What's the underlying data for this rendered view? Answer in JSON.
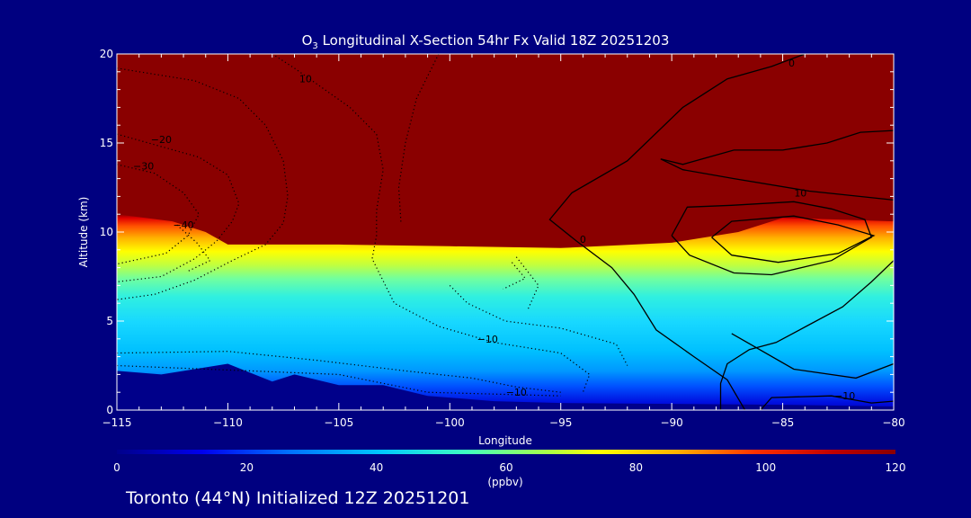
{
  "chart_data": {
    "type": "heatmap",
    "title_prefix": "O",
    "title_sub": "3",
    "title_rest": " Longitudinal X-Section 54hr  Fx Valid 18Z 20251203",
    "xlabel": "Longitude",
    "ylabel": "Altitude (km)",
    "xlim": [
      -115,
      -80
    ],
    "ylim": [
      0,
      20
    ],
    "x_ticks": [
      "−115",
      "−110",
      "−105",
      "−100",
      "−95",
      "−90",
      "−85",
      "−80"
    ],
    "x_tick_values": [
      -115,
      -110,
      -105,
      -100,
      -95,
      -90,
      -85,
      -80
    ],
    "y_ticks": [
      "0",
      "5",
      "10",
      "15",
      "20"
    ],
    "y_tick_values": [
      0,
      5,
      10,
      15,
      20
    ],
    "colorbar": {
      "min": 0,
      "max": 120,
      "ticks": [
        "0",
        "20",
        "40",
        "60",
        "80",
        "100",
        "120"
      ],
      "tick_values": [
        0,
        20,
        40,
        60,
        80,
        100,
        120
      ],
      "label": "(ppbv)"
    },
    "tropopause_km": [
      [
        -115,
        11.0
      ],
      [
        -112.5,
        10.6
      ],
      [
        -111,
        10.0
      ],
      [
        -110,
        9.3
      ],
      [
        -105,
        9.3
      ],
      [
        -100,
        9.2
      ],
      [
        -95,
        9.1
      ],
      [
        -90,
        9.4
      ],
      [
        -87,
        10.0
      ],
      [
        -85,
        10.8
      ],
      [
        -80,
        10.6
      ]
    ],
    "terrain_km": [
      [
        -115,
        2.2
      ],
      [
        -113,
        2.0
      ],
      [
        -110,
        2.6
      ],
      [
        -108,
        1.6
      ],
      [
        -107,
        2.0
      ],
      [
        -105,
        1.4
      ],
      [
        -103,
        1.4
      ],
      [
        -101,
        0.8
      ],
      [
        -98,
        0.5
      ],
      [
        -95,
        0.4
      ],
      [
        -90,
        0.35
      ],
      [
        -85,
        0.3
      ],
      [
        -80,
        0.2
      ]
    ],
    "contour_labels": [
      {
        "text": "10",
        "x": -106.5,
        "y": 18.4
      },
      {
        "text": "−20",
        "x": -113.0,
        "y": 15.0
      },
      {
        "text": "−30",
        "x": -113.8,
        "y": 13.5
      },
      {
        "text": "−40",
        "x": -112.0,
        "y": 10.2
      },
      {
        "text": "−10",
        "x": -98.3,
        "y": 3.8
      },
      {
        "text": "−10",
        "x": -97.0,
        "y": 0.8
      },
      {
        "text": "0",
        "x": -94.0,
        "y": 9.4
      },
      {
        "text": "0",
        "x": -84.6,
        "y": 19.3
      },
      {
        "text": "10",
        "x": -84.2,
        "y": 12.0
      },
      {
        "text": "−10",
        "x": -82.2,
        "y": 0.6
      }
    ],
    "contours_solid": [
      [
        [
          -84,
          20
        ],
        [
          -85.5,
          19.3
        ],
        [
          -87.5,
          18.6
        ],
        [
          -89.5,
          17.0
        ],
        [
          -92,
          14.0
        ],
        [
          -94.5,
          12.2
        ],
        [
          -95.5,
          10.7
        ],
        [
          -94.3,
          9.5
        ],
        [
          -92.7,
          8.0
        ],
        [
          -91.7,
          6.5
        ],
        [
          -90.7,
          4.5
        ],
        [
          -89.0,
          3.0
        ],
        [
          -87.5,
          1.7
        ],
        [
          -86.7,
          0
        ]
      ],
      [
        [
          -80,
          15.7
        ],
        [
          -81.5,
          15.6
        ],
        [
          -83.0,
          15.0
        ],
        [
          -85.0,
          14.6
        ],
        [
          -87.2,
          14.6
        ],
        [
          -89.5,
          13.8
        ],
        [
          -90.5,
          14.1
        ],
        [
          -89.5,
          13.5
        ],
        [
          -87.2,
          13.0
        ],
        [
          -83.8,
          12.3
        ],
        [
          -80,
          11.8
        ]
      ],
      [
        [
          -80,
          8.4
        ],
        [
          -81.0,
          7.2
        ],
        [
          -82.3,
          5.8
        ],
        [
          -83.8,
          4.8
        ],
        [
          -85.3,
          3.8
        ],
        [
          -86.5,
          3.4
        ],
        [
          -87.5,
          2.6
        ],
        [
          -87.8,
          1.5
        ],
        [
          -87.8,
          0
        ]
      ],
      [
        [
          -87.3,
          4.3
        ],
        [
          -84.5,
          2.3
        ],
        [
          -81.7,
          1.8
        ],
        [
          -80,
          2.6
        ]
      ],
      [
        [
          -86.0,
          0
        ],
        [
          -85.5,
          0.7
        ],
        [
          -82.8,
          0.8
        ],
        [
          -81.0,
          0.4
        ],
        [
          -80,
          0.5
        ]
      ],
      [
        [
          -90,
          9.8
        ],
        [
          -89.3,
          11.4
        ],
        [
          -87.3,
          11.5
        ],
        [
          -84.5,
          11.7
        ],
        [
          -82.8,
          11.3
        ],
        [
          -81.3,
          10.7
        ],
        [
          -81.0,
          9.7
        ],
        [
          -82.8,
          8.4
        ],
        [
          -85.5,
          7.6
        ],
        [
          -87.2,
          7.7
        ],
        [
          -89.2,
          8.7
        ],
        [
          -90,
          9.8
        ]
      ],
      [
        [
          -88.2,
          9.7
        ],
        [
          -87.3,
          10.6
        ],
        [
          -84.5,
          10.9
        ],
        [
          -82.5,
          10.4
        ],
        [
          -80.9,
          9.8
        ],
        [
          -82.5,
          8.8
        ],
        [
          -85.2,
          8.3
        ],
        [
          -87.3,
          8.7
        ],
        [
          -88.2,
          9.7
        ]
      ]
    ],
    "contours_dotted": [
      [
        [
          -108,
          20
        ],
        [
          -107,
          19.2
        ],
        [
          -104.5,
          17.0
        ],
        [
          -103.3,
          15.5
        ],
        [
          -103,
          13.5
        ],
        [
          -103.3,
          11.2
        ],
        [
          -103.3,
          9.8
        ],
        [
          -103.5,
          8.5
        ],
        [
          -102.5,
          6.0
        ],
        [
          -100.5,
          4.7
        ],
        [
          -98,
          3.8
        ],
        [
          -95,
          3.2
        ],
        [
          -93.7,
          2.0
        ],
        [
          -94,
          1.0
        ]
      ],
      [
        [
          -100.5,
          20
        ],
        [
          -101.5,
          17.5
        ],
        [
          -102.0,
          15.0
        ],
        [
          -102.3,
          12.5
        ],
        [
          -102.2,
          10.5
        ]
      ],
      [
        [
          -115,
          19.2
        ],
        [
          -111.5,
          18.5
        ],
        [
          -109.5,
          17.5
        ],
        [
          -108.3,
          16.0
        ],
        [
          -107.5,
          14.0
        ],
        [
          -107.3,
          12.0
        ],
        [
          -107.5,
          10.5
        ],
        [
          -108.3,
          9.3
        ],
        [
          -109.8,
          8.4
        ],
        [
          -111.5,
          7.3
        ],
        [
          -113.3,
          6.5
        ],
        [
          -115,
          6.2
        ]
      ],
      [
        [
          -115,
          15.5
        ],
        [
          -113.0,
          14.8
        ],
        [
          -111.3,
          14.2
        ],
        [
          -110.0,
          13.2
        ],
        [
          -109.5,
          11.6
        ],
        [
          -109.8,
          10.6
        ],
        [
          -110.5,
          9.5
        ],
        [
          -111.5,
          8.5
        ],
        [
          -113.0,
          7.5
        ],
        [
          -115,
          7.2
        ]
      ],
      [
        [
          -115,
          13.8
        ],
        [
          -113.3,
          13.3
        ],
        [
          -112.0,
          12.2
        ],
        [
          -111.3,
          11.0
        ],
        [
          -111.8,
          9.8
        ],
        [
          -112.8,
          8.8
        ],
        [
          -115,
          8.2
        ]
      ],
      [
        [
          -112.3,
          10.4
        ],
        [
          -111.4,
          9.4
        ],
        [
          -110.8,
          8.4
        ],
        [
          -111.8,
          7.8
        ]
      ],
      [
        [
          -115,
          3.2
        ],
        [
          -110,
          3.3
        ],
        [
          -106,
          2.8
        ],
        [
          -102,
          2.2
        ],
        [
          -99,
          1.8
        ],
        [
          -97,
          1.3
        ],
        [
          -95,
          1.0
        ]
      ],
      [
        [
          -115,
          2.5
        ],
        [
          -109,
          2.2
        ],
        [
          -105,
          2.0
        ],
        [
          -101,
          1.0
        ],
        [
          -98,
          0.9
        ],
        [
          -95,
          0.8
        ]
      ],
      [
        [
          -100,
          7.0
        ],
        [
          -99.2,
          6.0
        ],
        [
          -97.5,
          5.0
        ],
        [
          -95.0,
          4.6
        ],
        [
          -92.5,
          3.7
        ],
        [
          -92.0,
          2.5
        ]
      ],
      [
        [
          -97,
          8.6
        ],
        [
          -96.0,
          7.0
        ],
        [
          -96.5,
          5.6
        ]
      ],
      [
        [
          -97.2,
          8.3
        ],
        [
          -96.6,
          7.4
        ],
        [
          -97.6,
          6.8
        ]
      ]
    ]
  },
  "footer": {
    "text": "Toronto (44°N) Initialized 12Z 20251201"
  }
}
